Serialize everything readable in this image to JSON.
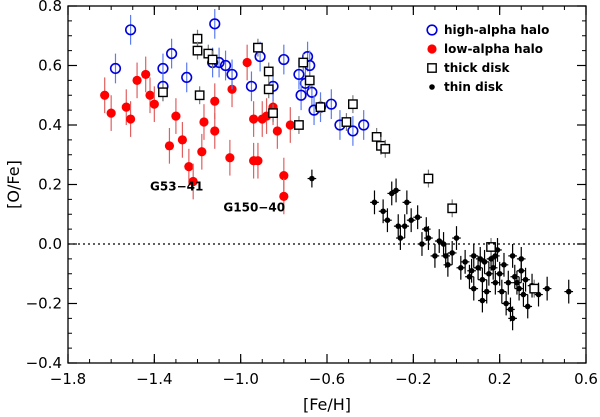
{
  "chart_data": {
    "type": "scatter",
    "title": "",
    "xlabel": "[Fe/H]",
    "ylabel": "[O/Fe]",
    "xlim": [
      -1.8,
      0.6
    ],
    "ylim": [
      -0.4,
      0.8
    ],
    "xticks": [
      -1.8,
      -1.4,
      -1.0,
      -0.6,
      -0.2,
      0.2,
      0.6
    ],
    "xtick_labels": [
      "−1.8",
      "−1.4",
      "−1.0",
      "−0.6",
      "−0.2",
      "0.2",
      "0.6"
    ],
    "yticks": [
      -0.4,
      -0.2,
      0.0,
      0.2,
      0.4,
      0.6,
      0.8
    ],
    "ytick_labels": [
      "−0.4",
      "−0.2",
      "0.0",
      "0.2",
      "0.4",
      "0.6",
      "0.8"
    ],
    "reference_line": {
      "y": 0.0,
      "style": "dotted"
    },
    "legend_position": "top-right",
    "annotations": [
      {
        "text": "G53−41",
        "x": -1.42,
        "y": 0.18
      },
      {
        "text": "G150−40",
        "x": -1.08,
        "y": 0.11
      }
    ],
    "series": [
      {
        "name": "high-alpha halo",
        "marker": "open-circle",
        "color": "#0000dd",
        "error_color": "#5c7cf0",
        "points": [
          [
            -1.58,
            0.59,
            0.05
          ],
          [
            -1.51,
            0.72,
            0.05
          ],
          [
            -1.36,
            0.59,
            0.05
          ],
          [
            -1.36,
            0.53,
            0.05
          ],
          [
            -1.32,
            0.64,
            0.05
          ],
          [
            -1.25,
            0.56,
            0.05
          ],
          [
            -1.12,
            0.74,
            0.05
          ],
          [
            -1.13,
            0.61,
            0.05
          ],
          [
            -1.1,
            0.61,
            0.05
          ],
          [
            -1.07,
            0.6,
            0.05
          ],
          [
            -1.04,
            0.57,
            0.05
          ],
          [
            -0.95,
            0.53,
            0.05
          ],
          [
            -0.91,
            0.63,
            0.05
          ],
          [
            -0.85,
            0.53,
            0.05
          ],
          [
            -0.8,
            0.62,
            0.05
          ],
          [
            -0.73,
            0.57,
            0.05
          ],
          [
            -0.7,
            0.54,
            0.05
          ],
          [
            -0.69,
            0.63,
            0.05
          ],
          [
            -0.68,
            0.6,
            0.05
          ],
          [
            -0.67,
            0.51,
            0.05
          ],
          [
            -0.63,
            0.46,
            0.05
          ],
          [
            -0.66,
            0.45,
            0.05
          ],
          [
            -0.58,
            0.47,
            0.05
          ],
          [
            -0.54,
            0.4,
            0.05
          ],
          [
            -0.48,
            0.38,
            0.05
          ],
          [
            -0.43,
            0.4,
            0.05
          ],
          [
            -0.72,
            0.5,
            0.05
          ]
        ]
      },
      {
        "name": "low-alpha halo",
        "marker": "filled-circle",
        "color": "#ff0000",
        "error_color": "#e06060",
        "points": [
          [
            -1.63,
            0.5,
            0.06
          ],
          [
            -1.6,
            0.44,
            0.06
          ],
          [
            -1.53,
            0.46,
            0.06
          ],
          [
            -1.51,
            0.42,
            0.06
          ],
          [
            -1.48,
            0.55,
            0.06
          ],
          [
            -1.44,
            0.57,
            0.06
          ],
          [
            -1.42,
            0.5,
            0.06
          ],
          [
            -1.4,
            0.47,
            0.06
          ],
          [
            -1.33,
            0.33,
            0.06
          ],
          [
            -1.3,
            0.43,
            0.06
          ],
          [
            -1.27,
            0.35,
            0.06
          ],
          [
            -1.24,
            0.26,
            0.06
          ],
          [
            -1.22,
            0.21,
            0.06
          ],
          [
            -1.18,
            0.31,
            0.06
          ],
          [
            -1.17,
            0.41,
            0.06
          ],
          [
            -1.12,
            0.48,
            0.06
          ],
          [
            -1.12,
            0.38,
            0.06
          ],
          [
            -1.05,
            0.29,
            0.06
          ],
          [
            -1.04,
            0.52,
            0.06
          ],
          [
            -0.97,
            0.61,
            0.06
          ],
          [
            -0.94,
            0.42,
            0.06
          ],
          [
            -0.94,
            0.28,
            0.06
          ],
          [
            -0.92,
            0.28,
            0.06
          ],
          [
            -0.9,
            0.42,
            0.06
          ],
          [
            -0.88,
            0.43,
            0.06
          ],
          [
            -0.85,
            0.46,
            0.06
          ],
          [
            -0.83,
            0.38,
            0.06
          ],
          [
            -0.8,
            0.23,
            0.06
          ],
          [
            -0.8,
            0.16,
            0.06
          ],
          [
            -0.77,
            0.4,
            0.06
          ]
        ]
      },
      {
        "name": "thick disk",
        "marker": "open-square",
        "color": "#000000",
        "error_color": "#7a7a7a",
        "points": [
          [
            -1.36,
            0.51,
            0.03
          ],
          [
            -1.2,
            0.69,
            0.03
          ],
          [
            -1.2,
            0.65,
            0.03
          ],
          [
            -1.19,
            0.5,
            0.03
          ],
          [
            -1.15,
            0.64,
            0.03
          ],
          [
            -1.13,
            0.62,
            0.03
          ],
          [
            -0.92,
            0.66,
            0.03
          ],
          [
            -0.87,
            0.58,
            0.03
          ],
          [
            -0.87,
            0.52,
            0.03
          ],
          [
            -0.85,
            0.44,
            0.03
          ],
          [
            -0.73,
            0.4,
            0.03
          ],
          [
            -0.71,
            0.61,
            0.03
          ],
          [
            -0.68,
            0.55,
            0.03
          ],
          [
            -0.63,
            0.46,
            0.03
          ],
          [
            -0.51,
            0.41,
            0.03
          ],
          [
            -0.48,
            0.47,
            0.03
          ],
          [
            -0.37,
            0.36,
            0.03
          ],
          [
            -0.35,
            0.33,
            0.03
          ],
          [
            -0.33,
            0.32,
            0.03
          ],
          [
            -0.13,
            0.22,
            0.03
          ],
          [
            -0.02,
            0.12,
            0.03
          ],
          [
            0.16,
            -0.01,
            0.03
          ],
          [
            0.36,
            -0.15,
            0.03
          ]
        ]
      },
      {
        "name": "thin disk",
        "marker": "filled-dot",
        "color": "#000000",
        "error_color": "#000000",
        "points": [
          [
            -0.67,
            0.22,
            0.03
          ],
          [
            -0.38,
            0.14,
            0.04
          ],
          [
            -0.34,
            0.11,
            0.04
          ],
          [
            -0.32,
            0.08,
            0.04
          ],
          [
            -0.3,
            0.17,
            0.04
          ],
          [
            -0.28,
            0.18,
            0.04
          ],
          [
            -0.27,
            0.06,
            0.04
          ],
          [
            -0.26,
            0.02,
            0.04
          ],
          [
            -0.24,
            0.06,
            0.04
          ],
          [
            -0.23,
            0.14,
            0.04
          ],
          [
            -0.21,
            0.08,
            0.04
          ],
          [
            -0.18,
            0.09,
            0.04
          ],
          [
            -0.16,
            0.0,
            0.04
          ],
          [
            -0.14,
            0.05,
            0.04
          ],
          [
            -0.13,
            0.02,
            0.04
          ],
          [
            -0.1,
            -0.04,
            0.04
          ],
          [
            -0.08,
            0.01,
            0.04
          ],
          [
            -0.06,
            0.0,
            0.04
          ],
          [
            -0.05,
            -0.04,
            0.04
          ],
          [
            -0.04,
            -0.07,
            0.04
          ],
          [
            -0.02,
            -0.03,
            0.04
          ],
          [
            0.0,
            0.02,
            0.04
          ],
          [
            0.02,
            -0.08,
            0.04
          ],
          [
            0.04,
            -0.06,
            0.04
          ],
          [
            0.06,
            -0.11,
            0.04
          ],
          [
            0.07,
            -0.09,
            0.04
          ],
          [
            0.08,
            -0.04,
            0.04
          ],
          [
            0.1,
            -0.08,
            0.04
          ],
          [
            0.11,
            -0.05,
            0.04
          ],
          [
            0.12,
            -0.12,
            0.04
          ],
          [
            0.13,
            -0.06,
            0.04
          ],
          [
            0.14,
            -0.16,
            0.04
          ],
          [
            0.15,
            -0.1,
            0.04
          ],
          [
            0.16,
            -0.05,
            0.04
          ],
          [
            0.17,
            -0.08,
            0.04
          ],
          [
            0.18,
            -0.13,
            0.04
          ],
          [
            0.18,
            -0.04,
            0.04
          ],
          [
            0.19,
            -0.02,
            0.04
          ],
          [
            0.2,
            -0.1,
            0.04
          ],
          [
            0.21,
            -0.16,
            0.04
          ],
          [
            0.22,
            -0.07,
            0.04
          ],
          [
            0.23,
            -0.2,
            0.04
          ],
          [
            0.24,
            -0.13,
            0.04
          ],
          [
            0.25,
            -0.22,
            0.04
          ],
          [
            0.26,
            -0.25,
            0.04
          ],
          [
            0.27,
            -0.11,
            0.04
          ],
          [
            0.28,
            -0.13,
            0.04
          ],
          [
            0.29,
            -0.15,
            0.04
          ],
          [
            0.3,
            -0.09,
            0.04
          ],
          [
            0.31,
            -0.17,
            0.04
          ],
          [
            0.32,
            -0.12,
            0.04
          ],
          [
            0.33,
            -0.21,
            0.04
          ],
          [
            0.35,
            -0.14,
            0.04
          ],
          [
            0.38,
            -0.17,
            0.04
          ],
          [
            0.42,
            -0.15,
            0.04
          ],
          [
            0.52,
            -0.16,
            0.04
          ],
          [
            0.08,
            -0.15,
            0.04
          ],
          [
            0.12,
            -0.19,
            0.04
          ],
          [
            0.26,
            -0.04,
            0.04
          ],
          [
            0.3,
            -0.05,
            0.04
          ]
        ]
      }
    ]
  }
}
